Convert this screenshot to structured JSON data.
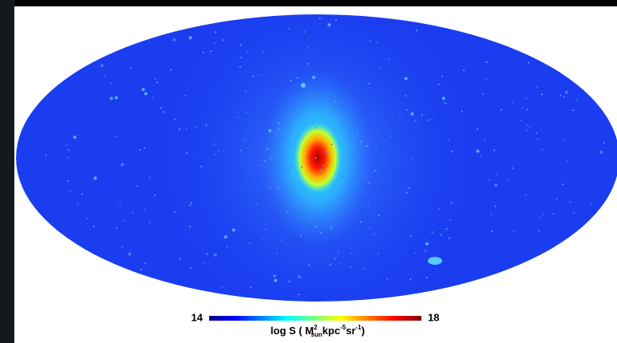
{
  "chart_data": {
    "type": "skymap",
    "colorbar": {
      "clim": [
        14,
        18
      ],
      "ticks": [
        14,
        18
      ],
      "label_parts": [
        {
          "text": "log S  ( M"
        },
        {
          "text": "2",
          "style": "sup"
        },
        {
          "text": "sun",
          "style": "sub"
        },
        {
          "text": "kpc"
        },
        {
          "text": "-5",
          "style": "sup"
        },
        {
          "text": "sr"
        },
        {
          "text": "-1",
          "style": "sup"
        },
        {
          "text": ")"
        }
      ]
    }
  }
}
